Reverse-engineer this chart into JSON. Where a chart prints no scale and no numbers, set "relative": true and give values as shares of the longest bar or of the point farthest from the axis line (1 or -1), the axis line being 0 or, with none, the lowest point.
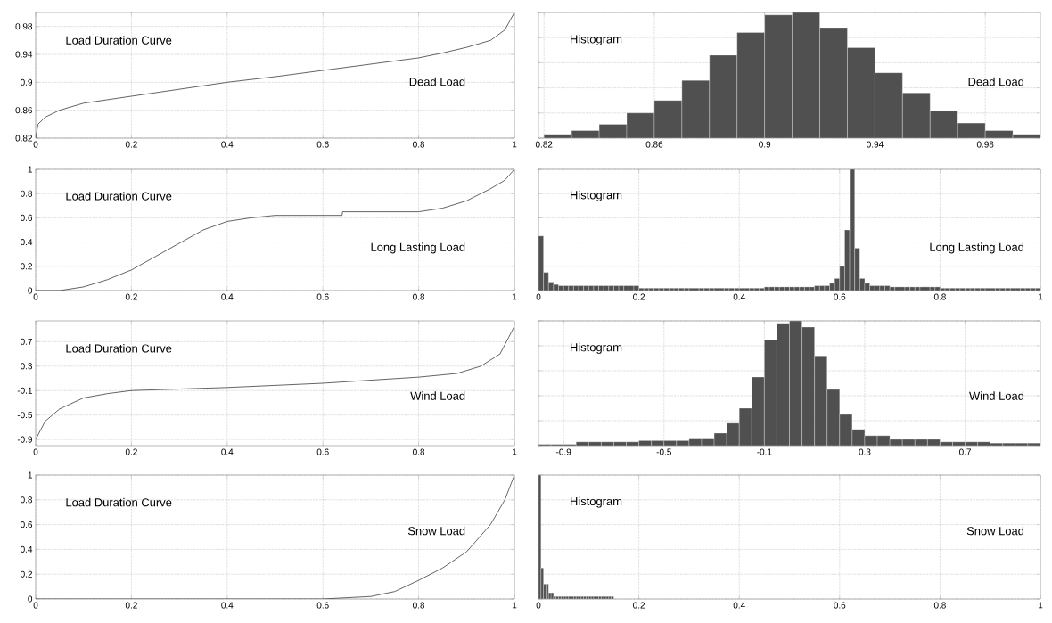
{
  "chart_data": [
    {
      "type": "line",
      "annotations": [
        "Load Duration Curve",
        "Dead Load"
      ],
      "color": "#3c3c3c",
      "grid": true,
      "x": [
        0,
        0.005,
        0.02,
        0.05,
        0.1,
        0.2,
        0.3,
        0.4,
        0.5,
        0.6,
        0.7,
        0.8,
        0.85,
        0.9,
        0.95,
        0.98,
        1
      ],
      "values": [
        0.82,
        0.84,
        0.85,
        0.86,
        0.87,
        0.88,
        0.89,
        0.9,
        0.908,
        0.917,
        0.926,
        0.935,
        0.942,
        0.95,
        0.96,
        0.975,
        1.0
      ],
      "xlim": [
        0,
        1
      ],
      "xticks": [
        0,
        0.2,
        0.4,
        0.6,
        0.8,
        1
      ],
      "ylim": [
        0.82,
        1.0
      ],
      "yticks": [
        0.82,
        0.86,
        0.9,
        0.94,
        0.98
      ]
    },
    {
      "type": "bar",
      "annotations": [
        "Histogram",
        "Dead Load"
      ],
      "color": "#505050",
      "grid": true,
      "relative": true,
      "tick_labels": "x",
      "x": [
        0.825,
        0.835,
        0.845,
        0.855,
        0.865,
        0.875,
        0.885,
        0.895,
        0.905,
        0.915,
        0.925,
        0.935,
        0.945,
        0.955,
        0.965,
        0.975,
        0.985,
        0.995
      ],
      "values": [
        0.03,
        0.06,
        0.11,
        0.2,
        0.3,
        0.46,
        0.66,
        0.84,
        0.98,
        1.0,
        0.88,
        0.72,
        0.52,
        0.36,
        0.22,
        0.12,
        0.06,
        0.03
      ],
      "xlim": [
        0.818,
        1.0
      ],
      "xticks": [
        0.82,
        0.86,
        0.9,
        0.94,
        0.98
      ]
    },
    {
      "type": "line",
      "annotations": [
        "Load Duration Curve",
        "Long Lasting Load"
      ],
      "color": "#3c3c3c",
      "grid": true,
      "x": [
        0,
        0.05,
        0.1,
        0.15,
        0.2,
        0.25,
        0.3,
        0.35,
        0.4,
        0.45,
        0.5,
        0.64,
        0.641,
        0.8,
        0.85,
        0.9,
        0.95,
        0.98,
        1
      ],
      "values": [
        0,
        0,
        0.03,
        0.09,
        0.17,
        0.28,
        0.39,
        0.5,
        0.57,
        0.6,
        0.62,
        0.62,
        0.65,
        0.65,
        0.68,
        0.74,
        0.84,
        0.91,
        1.0
      ],
      "xlim": [
        0,
        1
      ],
      "xticks": [
        0,
        0.2,
        0.4,
        0.6,
        0.8,
        1
      ],
      "ylim": [
        0,
        1
      ],
      "yticks": [
        0,
        0.2,
        0.4,
        0.6,
        0.8,
        1
      ]
    },
    {
      "type": "bar",
      "annotations": [
        "Histogram",
        "Long Lasting Load"
      ],
      "color": "#505050",
      "grid": true,
      "relative": true,
      "tick_labels": "x",
      "x": [
        0.005,
        0.015,
        0.025,
        0.035,
        0.045,
        0.055,
        0.065,
        0.075,
        0.085,
        0.095,
        0.105,
        0.115,
        0.125,
        0.135,
        0.145,
        0.155,
        0.165,
        0.175,
        0.185,
        0.195,
        0.205,
        0.215,
        0.225,
        0.235,
        0.245,
        0.255,
        0.265,
        0.275,
        0.285,
        0.295,
        0.305,
        0.315,
        0.325,
        0.335,
        0.345,
        0.355,
        0.365,
        0.375,
        0.385,
        0.395,
        0.405,
        0.415,
        0.425,
        0.435,
        0.445,
        0.455,
        0.465,
        0.475,
        0.485,
        0.495,
        0.505,
        0.515,
        0.525,
        0.535,
        0.545,
        0.555,
        0.565,
        0.575,
        0.585,
        0.595,
        0.605,
        0.615,
        0.625,
        0.635,
        0.645,
        0.655,
        0.665,
        0.675,
        0.685,
        0.695,
        0.705,
        0.715,
        0.725,
        0.735,
        0.745,
        0.755,
        0.765,
        0.775,
        0.785,
        0.795,
        0.805,
        0.815,
        0.825,
        0.835,
        0.845,
        0.855,
        0.865,
        0.875,
        0.885,
        0.895,
        0.905,
        0.915,
        0.925,
        0.935,
        0.945,
        0.955,
        0.965,
        0.975,
        0.985,
        0.995
      ],
      "values": [
        0.45,
        0.15,
        0.07,
        0.05,
        0.04,
        0.04,
        0.04,
        0.04,
        0.04,
        0.04,
        0.04,
        0.04,
        0.04,
        0.04,
        0.04,
        0.04,
        0.04,
        0.04,
        0.04,
        0.04,
        0.02,
        0.02,
        0.02,
        0.02,
        0.02,
        0.02,
        0.02,
        0.02,
        0.02,
        0.02,
        0.02,
        0.02,
        0.02,
        0.02,
        0.02,
        0.02,
        0.02,
        0.02,
        0.02,
        0.02,
        0.02,
        0.02,
        0.02,
        0.02,
        0.02,
        0.03,
        0.03,
        0.03,
        0.03,
        0.03,
        0.03,
        0.03,
        0.03,
        0.03,
        0.03,
        0.04,
        0.04,
        0.04,
        0.06,
        0.1,
        0.2,
        0.5,
        1.0,
        0.35,
        0.1,
        0.06,
        0.04,
        0.04,
        0.04,
        0.04,
        0.03,
        0.03,
        0.03,
        0.03,
        0.03,
        0.03,
        0.03,
        0.03,
        0.03,
        0.03,
        0.02,
        0.02,
        0.02,
        0.02,
        0.02,
        0.02,
        0.02,
        0.02,
        0.02,
        0.02,
        0.02,
        0.02,
        0.02,
        0.02,
        0.02,
        0.02,
        0.02,
        0.02,
        0.02,
        0.02
      ],
      "xlim": [
        0,
        1
      ],
      "xticks": [
        0,
        0.2,
        0.4,
        0.6,
        0.8,
        1
      ]
    },
    {
      "type": "line",
      "annotations": [
        "Load Duration Curve",
        "Wind Load"
      ],
      "color": "#3c3c3c",
      "grid": true,
      "x": [
        0,
        0.02,
        0.05,
        0.1,
        0.15,
        0.2,
        0.4,
        0.6,
        0.8,
        0.88,
        0.93,
        0.97,
        1
      ],
      "values": [
        -0.9,
        -0.6,
        -0.4,
        -0.22,
        -0.15,
        -0.1,
        -0.05,
        0.02,
        0.12,
        0.18,
        0.3,
        0.5,
        0.95
      ],
      "xlim": [
        0,
        1
      ],
      "xticks": [
        0,
        0.2,
        0.4,
        0.6,
        0.8,
        1
      ],
      "ylim": [
        -1.0,
        1.04
      ],
      "yticks": [
        -0.9,
        -0.5,
        -0.1,
        0.3,
        0.7
      ]
    },
    {
      "type": "bar",
      "annotations": [
        "Histogram",
        "Wind Load"
      ],
      "color": "#505050",
      "grid": true,
      "relative": true,
      "tick_labels": "x",
      "x": [
        -0.975,
        -0.925,
        -0.875,
        -0.825,
        -0.775,
        -0.725,
        -0.675,
        -0.625,
        -0.575,
        -0.525,
        -0.475,
        -0.425,
        -0.375,
        -0.325,
        -0.275,
        -0.225,
        -0.175,
        -0.125,
        -0.075,
        -0.025,
        0.025,
        0.075,
        0.125,
        0.175,
        0.225,
        0.275,
        0.325,
        0.375,
        0.425,
        0.475,
        0.525,
        0.575,
        0.625,
        0.675,
        0.725,
        0.775,
        0.825,
        0.875,
        0.925,
        0.975
      ],
      "values": [
        0.01,
        0.01,
        0.01,
        0.03,
        0.03,
        0.03,
        0.03,
        0.03,
        0.04,
        0.04,
        0.04,
        0.04,
        0.06,
        0.06,
        0.1,
        0.18,
        0.3,
        0.55,
        0.85,
        0.98,
        1.0,
        0.95,
        0.72,
        0.45,
        0.25,
        0.13,
        0.08,
        0.08,
        0.05,
        0.05,
        0.05,
        0.05,
        0.03,
        0.03,
        0.03,
        0.03,
        0.02,
        0.02,
        0.02,
        0.02
      ],
      "xlim": [
        -1,
        1
      ],
      "xticks": [
        -0.9,
        -0.5,
        -0.1,
        0.3,
        0.7
      ]
    },
    {
      "type": "line",
      "annotations": [
        "Load Duration Curve",
        "Snow Load"
      ],
      "color": "#3c3c3c",
      "grid": true,
      "x": [
        0,
        0.6,
        0.7,
        0.75,
        0.8,
        0.85,
        0.9,
        0.95,
        0.98,
        1
      ],
      "values": [
        0,
        0,
        0.02,
        0.06,
        0.15,
        0.25,
        0.38,
        0.6,
        0.8,
        1.0
      ],
      "xlim": [
        0,
        1
      ],
      "xticks": [
        0,
        0.2,
        0.4,
        0.6,
        0.8,
        1
      ],
      "ylim": [
        0,
        1
      ],
      "yticks": [
        0,
        0.2,
        0.4,
        0.6,
        0.8,
        1
      ]
    },
    {
      "type": "bar",
      "annotations": [
        "Histogram",
        "Snow Load"
      ],
      "color": "#505050",
      "grid": true,
      "relative": true,
      "tick_labels": "x",
      "x": [
        0.0025,
        0.0075,
        0.0125,
        0.0175,
        0.0225,
        0.0275,
        0.0325,
        0.0375,
        0.0425,
        0.0475,
        0.0525,
        0.0575,
        0.0625,
        0.0675,
        0.0725,
        0.0775,
        0.0825,
        0.0875,
        0.0925,
        0.0975,
        0.1025,
        0.1075,
        0.1125,
        0.1175,
        0.1225,
        0.1275,
        0.1325,
        0.1375,
        0.1425,
        0.1475
      ],
      "values": [
        1.0,
        0.25,
        0.12,
        0.12,
        0.05,
        0.05,
        0.02,
        0.02,
        0.02,
        0.02,
        0.02,
        0.02,
        0.02,
        0.02,
        0.02,
        0.02,
        0.02,
        0.02,
        0.02,
        0.02,
        0.02,
        0.02,
        0.02,
        0.02,
        0.02,
        0.02,
        0.02,
        0.02,
        0.02,
        0.02
      ],
      "xlim": [
        0,
        1
      ],
      "xticks": [
        0,
        0.2,
        0.4,
        0.6,
        0.8,
        1
      ]
    }
  ]
}
